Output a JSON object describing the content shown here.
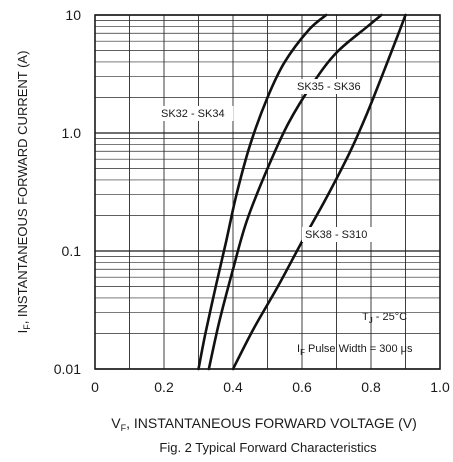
{
  "chart_data": {
    "type": "line",
    "title": "Fig. 2  Typical Forward Characteristics",
    "xlabel": "V",
    "xlabel_sub": "F",
    "xlabel_rest": ", INSTANTANEOUS FORWARD VOLTAGE (V)",
    "ylabel": "I",
    "ylabel_sub": "F",
    "ylabel_rest": ", INSTANTANEOUS FORWARD CURRENT (A)",
    "x_scale": "linear",
    "y_scale": "log",
    "xlim": [
      0,
      1.0
    ],
    "ylim": [
      0.01,
      10
    ],
    "x_ticks": [
      0,
      0.2,
      0.4,
      0.6,
      0.8,
      1.0
    ],
    "x_tick_labels": [
      "0",
      "0.2",
      "0.4",
      "0.6",
      "0.8",
      "1.0"
    ],
    "y_ticks": [
      0.01,
      0.1,
      1.0,
      10
    ],
    "y_tick_labels": [
      "0.01",
      "0.1",
      "1.0",
      "10"
    ],
    "grid": true,
    "series": [
      {
        "name": "SK32 - SK34",
        "points": [
          [
            0.3,
            0.01
          ],
          [
            0.32,
            0.02
          ],
          [
            0.35,
            0.05
          ],
          [
            0.38,
            0.12
          ],
          [
            0.41,
            0.3
          ],
          [
            0.45,
            0.8
          ],
          [
            0.5,
            2.0
          ],
          [
            0.55,
            4.0
          ],
          [
            0.62,
            7.5
          ],
          [
            0.67,
            10
          ]
        ]
      },
      {
        "name": "SK35 - SK36",
        "points": [
          [
            0.33,
            0.01
          ],
          [
            0.36,
            0.025
          ],
          [
            0.4,
            0.07
          ],
          [
            0.44,
            0.18
          ],
          [
            0.5,
            0.5
          ],
          [
            0.56,
            1.2
          ],
          [
            0.63,
            2.6
          ],
          [
            0.7,
            4.8
          ],
          [
            0.79,
            8.0
          ],
          [
            0.83,
            10
          ]
        ]
      },
      {
        "name": "SK38 - S310",
        "points": [
          [
            0.4,
            0.01
          ],
          [
            0.46,
            0.022
          ],
          [
            0.53,
            0.05
          ],
          [
            0.6,
            0.12
          ],
          [
            0.67,
            0.28
          ],
          [
            0.74,
            0.7
          ],
          [
            0.79,
            1.5
          ],
          [
            0.84,
            3.5
          ],
          [
            0.88,
            7.0
          ],
          [
            0.9,
            10
          ]
        ]
      }
    ],
    "annotations": {
      "temperature_main": "T",
      "temperature_sub": "J",
      "temperature_rest": " - 25°C",
      "pulse_main": "I",
      "pulse_sub": "F",
      "pulse_rest": " Pulse Width =  300 μs"
    }
  }
}
